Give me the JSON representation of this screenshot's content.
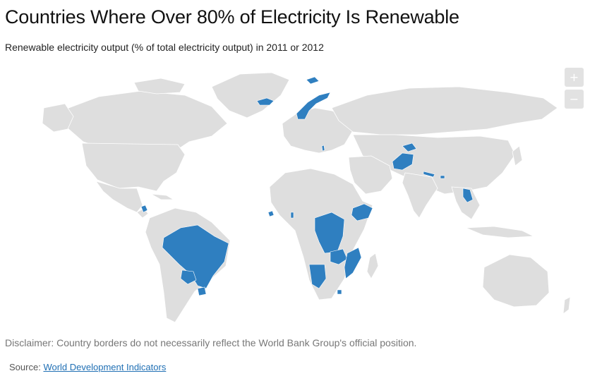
{
  "title": "Countries Where Over 80% of Electricity Is Renewable",
  "subtitle": "Renewable electricity output (% of total electricity output) in 2011 or 2012",
  "zoom": {
    "in_label": "+",
    "out_label": "−"
  },
  "disclaimer": "Disclaimer: Country borders do not necessarily reflect the World Bank Group's official position.",
  "source": {
    "prefix": "Source:",
    "link_text": "World Development Indicators"
  },
  "colors": {
    "highlight": "#2f7fc0",
    "land": "#dedede",
    "background": "#ffffff",
    "link": "#1f6fb4"
  }
}
